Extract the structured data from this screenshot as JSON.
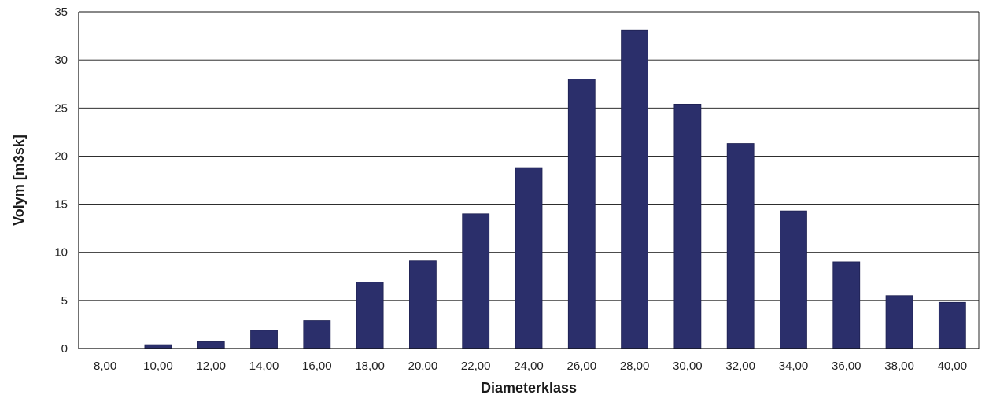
{
  "chart_data": {
    "type": "bar",
    "title": "",
    "xlabel": "Diameterklass",
    "ylabel": "Volym [m3sk]",
    "categories": [
      "8,00",
      "10,00",
      "12,00",
      "14,00",
      "16,00",
      "18,00",
      "20,00",
      "22,00",
      "24,00",
      "26,00",
      "28,00",
      "30,00",
      "32,00",
      "34,00",
      "36,00",
      "38,00",
      "40,00"
    ],
    "values": [
      0,
      0.4,
      0.7,
      1.9,
      2.9,
      6.9,
      9.1,
      14.0,
      18.8,
      28.0,
      33.1,
      25.4,
      21.3,
      14.3,
      9.0,
      5.5,
      4.8
    ],
    "ylim": [
      0,
      35
    ],
    "yticks": [
      "0",
      "5",
      "10",
      "15",
      "20",
      "25",
      "30",
      "35"
    ],
    "grid": true,
    "legend": "none",
    "bar_color": "#2b2f6b"
  }
}
